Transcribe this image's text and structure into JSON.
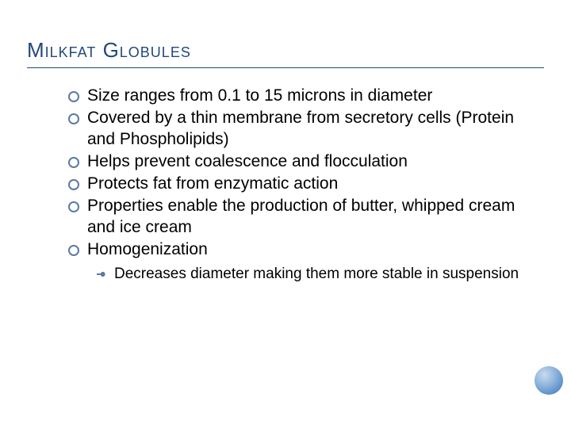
{
  "colors": {
    "title_color": "#1f497d",
    "bullet_ring_color": "#5a7aa8",
    "text_color": "#000000",
    "background": "#ffffff",
    "corner_gradient": [
      "#c9dbef",
      "#8fb4dd",
      "#5a8fc9",
      "#3c6da8"
    ]
  },
  "typography": {
    "title_fontsize": 26,
    "body_fontsize": 21,
    "sub_fontsize": 19,
    "font_family": "Arial"
  },
  "title": "Milkfat Globules",
  "bullets": {
    "b0": "Size ranges from 0.1 to 15 microns in diameter",
    "b1": "Covered by a thin membrane from secretory cells (Protein and Phospholipids)",
    "b2": "Helps prevent coalescence and flocculation",
    "b3": "Protects fat from enzymatic action",
    "b4": "Properties enable the production of butter, whipped cream and ice cream",
    "b5": "Homogenization"
  },
  "sub": {
    "s0": "Decreases diameter making them more stable in suspension"
  }
}
